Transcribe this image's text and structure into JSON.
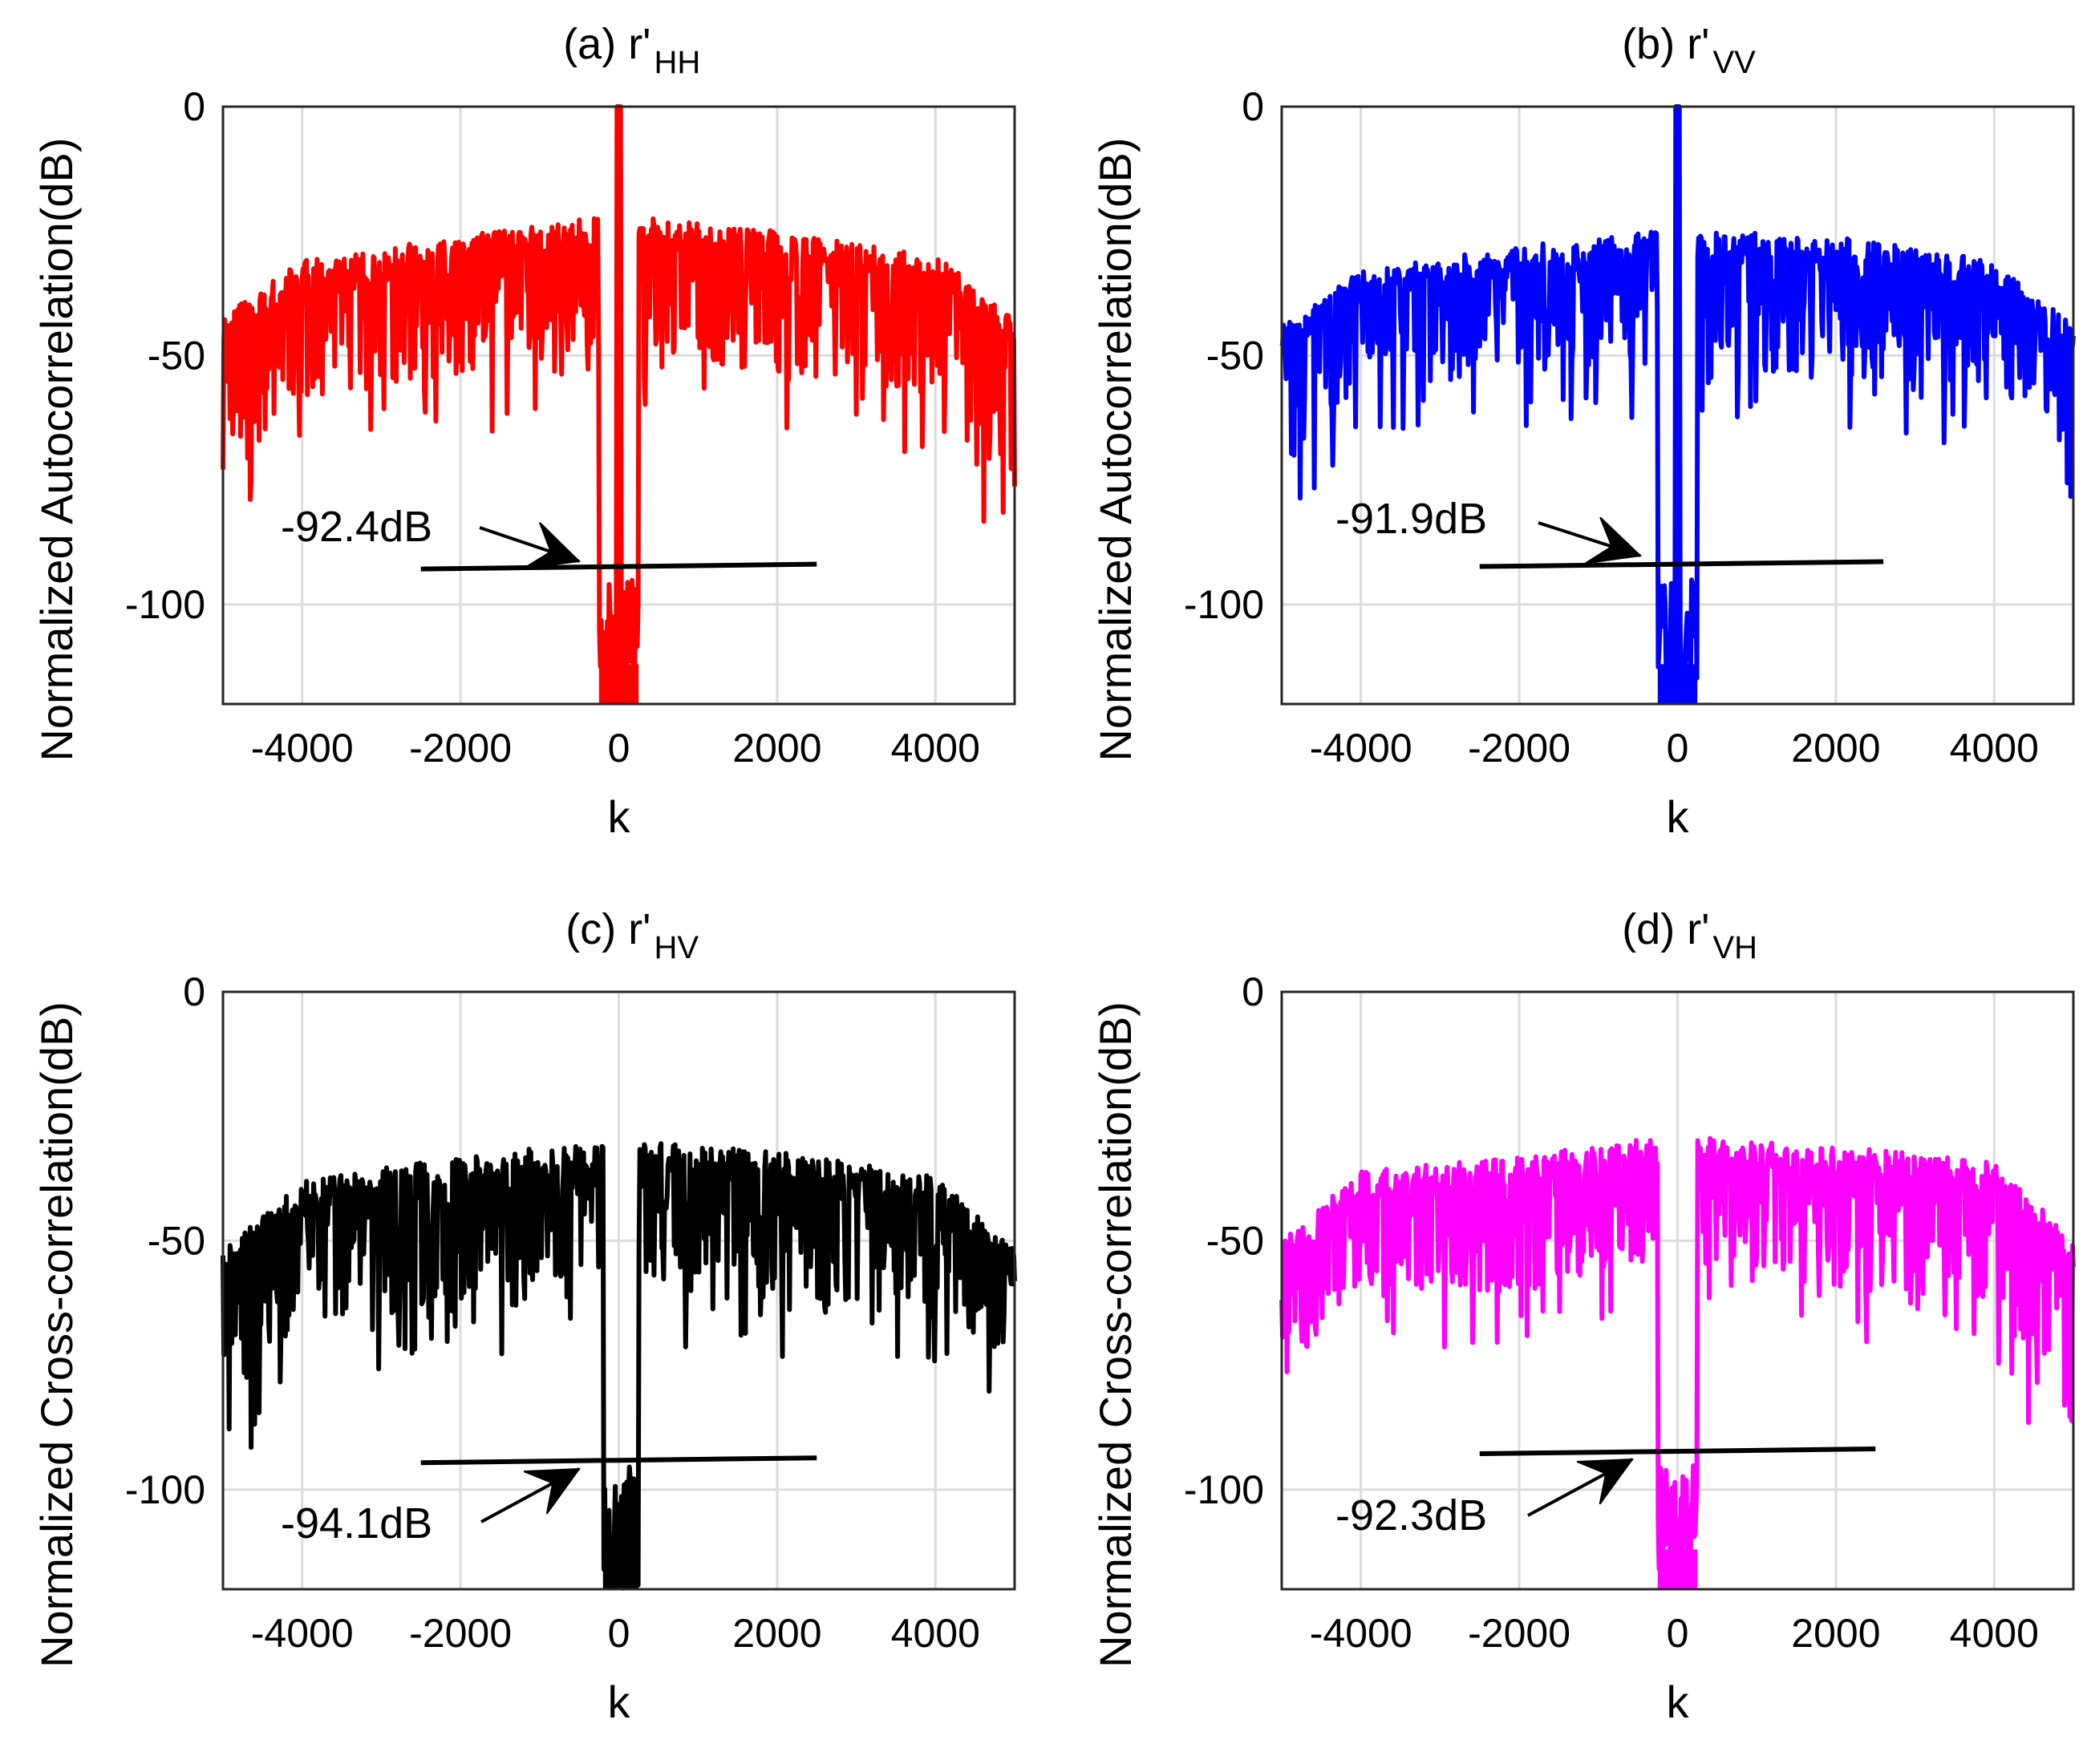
{
  "chart_data": [
    {
      "id": "a",
      "type": "line",
      "title": "(a) r'",
      "title_subscript": "HH",
      "xlabel": "k",
      "ylabel": "Normalized Autocorrelation(dB)",
      "xlim": [
        -5000,
        5000
      ],
      "ylim": [
        -120,
        0
      ],
      "xticks": [
        -4000,
        -2000,
        0,
        2000,
        4000
      ],
      "yticks": [
        0,
        -50,
        -100
      ],
      "xtick_labels": [
        "-4000",
        "-2000",
        "0",
        "2000",
        "4000"
      ],
      "ytick_labels": [
        "0",
        "-50",
        "-100"
      ],
      "grid": true,
      "color": "#ff0000",
      "series": [
        {
          "name": "r'HH",
          "peak": {
            "k": 0,
            "value": 0
          },
          "envelope_top": [
            [
              -5000,
              -42
            ],
            [
              -4000,
              -31
            ],
            [
              -2000,
              -26
            ],
            [
              -200,
              -22
            ],
            [
              200,
              -22
            ],
            [
              2000,
              -25
            ],
            [
              4000,
              -30
            ],
            [
              5000,
              -42
            ]
          ],
          "envelope_bottom": [
            [
              -5000,
              -80
            ],
            [
              -4000,
              -58
            ],
            [
              -2000,
              -55
            ],
            [
              -300,
              -48
            ],
            [
              300,
              -48
            ],
            [
              2000,
              -55
            ],
            [
              4000,
              -58
            ],
            [
              5000,
              -80
            ]
          ],
          "notch_k": [
            -250,
            250
          ],
          "notch_floor": -120
        }
      ],
      "annotation": {
        "text": "-92.4dB",
        "value_db": -92.4,
        "line_k": [
          -2500,
          2500
        ]
      }
    },
    {
      "id": "b",
      "type": "line",
      "title": "(b) r'",
      "title_subscript": "VV",
      "xlabel": "k",
      "ylabel": "Normalized Autocorrelation(dB)",
      "xlim": [
        -5000,
        5000
      ],
      "ylim": [
        -120,
        0
      ],
      "xticks": [
        -4000,
        -2000,
        0,
        2000,
        4000
      ],
      "yticks": [
        0,
        -50,
        -100
      ],
      "xtick_labels": [
        "-4000",
        "-2000",
        "0",
        "2000",
        "4000"
      ],
      "ytick_labels": [
        "0",
        "-50",
        "-100"
      ],
      "grid": true,
      "color": "#0000ff",
      "series": [
        {
          "name": "r'VV",
          "peak": {
            "k": 0,
            "value": 0
          },
          "envelope_top": [
            [
              -5000,
              -44
            ],
            [
              -4000,
              -33
            ],
            [
              -2000,
              -28
            ],
            [
              -200,
              -25
            ],
            [
              200,
              -25
            ],
            [
              2000,
              -26
            ],
            [
              4000,
              -31
            ],
            [
              5000,
              -44
            ]
          ],
          "envelope_bottom": [
            [
              -5000,
              -75
            ],
            [
              -4000,
              -56
            ],
            [
              -2000,
              -55
            ],
            [
              -300,
              -50
            ],
            [
              300,
              -50
            ],
            [
              2000,
              -55
            ],
            [
              4000,
              -56
            ],
            [
              5000,
              -75
            ]
          ],
          "notch_k": [
            -250,
            250
          ],
          "notch_floor": -120
        }
      ],
      "annotation": {
        "text": "-91.9dB",
        "value_db": -91.9,
        "line_k": [
          -2500,
          2600
        ]
      }
    },
    {
      "id": "c",
      "type": "line",
      "title": "(c) r'",
      "title_subscript": "HV",
      "xlabel": "k",
      "ylabel": "Normalized Cross-correlation(dB)",
      "xlim": [
        -5000,
        5000
      ],
      "ylim": [
        -120,
        0
      ],
      "xticks": [
        -4000,
        -2000,
        0,
        2000,
        4000
      ],
      "yticks": [
        0,
        -50,
        -100
      ],
      "xtick_labels": [
        "-4000",
        "-2000",
        "0",
        "2000",
        "4000"
      ],
      "ytick_labels": [
        "0",
        "-50",
        "-100"
      ],
      "grid": true,
      "color": "#000000",
      "series": [
        {
          "name": "r'HV",
          "peak": null,
          "envelope_top": [
            [
              -5000,
              -52
            ],
            [
              -4000,
              -38
            ],
            [
              -2000,
              -33
            ],
            [
              -200,
              -30
            ],
            [
              200,
              -30
            ],
            [
              2000,
              -32
            ],
            [
              4000,
              -37
            ],
            [
              5000,
              -52
            ]
          ],
          "envelope_bottom": [
            [
              -5000,
              -90
            ],
            [
              -4000,
              -66
            ],
            [
              -2000,
              -64
            ],
            [
              -300,
              -58
            ],
            [
              300,
              -58
            ],
            [
              2000,
              -64
            ],
            [
              4000,
              -66
            ],
            [
              5000,
              -76
            ]
          ],
          "notch_k": [
            -200,
            250
          ],
          "notch_floor": -120
        }
      ],
      "annotation": {
        "text": "-94.1dB",
        "value_db": -94.1,
        "line_k": [
          -2500,
          2500
        ]
      }
    },
    {
      "id": "d",
      "type": "line",
      "title": "(d) r'",
      "title_subscript": "VH",
      "xlabel": "k",
      "ylabel": "Normalized Cross-correlation(dB)",
      "xlim": [
        -5000,
        5000
      ],
      "ylim": [
        -120,
        0
      ],
      "xticks": [
        -4000,
        -2000,
        0,
        2000,
        4000
      ],
      "yticks": [
        0,
        -50,
        -100
      ],
      "xtick_labels": [
        "-4000",
        "-2000",
        "0",
        "2000",
        "4000"
      ],
      "ytick_labels": [
        "0",
        "-50",
        "-100"
      ],
      "grid": true,
      "color": "#ff00ff",
      "series": [
        {
          "name": "r'VH",
          "peak": null,
          "envelope_top": [
            [
              -5000,
              -50
            ],
            [
              -4000,
              -36
            ],
            [
              -2000,
              -33
            ],
            [
              -200,
              -29
            ],
            [
              200,
              -29
            ],
            [
              2000,
              -31
            ],
            [
              4000,
              -34
            ],
            [
              5000,
              -50
            ]
          ],
          "envelope_bottom": [
            [
              -5000,
              -78
            ],
            [
              -4000,
              -60
            ],
            [
              -2000,
              -60
            ],
            [
              -300,
              -55
            ],
            [
              300,
              -55
            ],
            [
              2000,
              -60
            ],
            [
              4000,
              -62
            ],
            [
              5000,
              -92
            ]
          ],
          "notch_k": [
            -250,
            250
          ],
          "notch_floor": -120
        }
      ],
      "annotation": {
        "text": "-92.3dB",
        "value_db": -92.3,
        "line_k": [
          -2500,
          2500
        ]
      }
    }
  ]
}
